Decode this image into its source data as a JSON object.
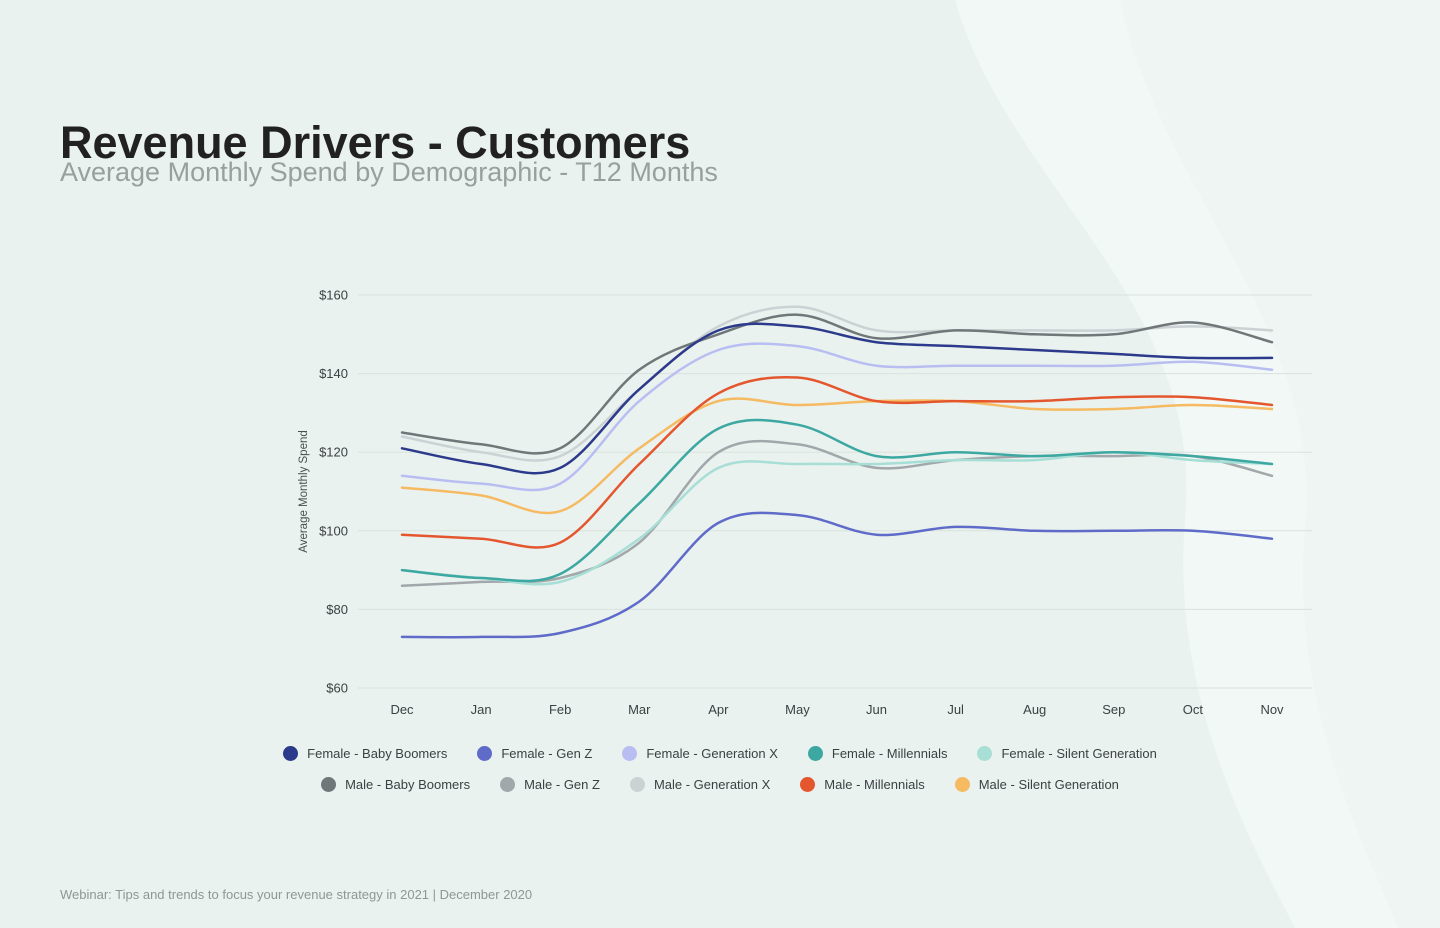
{
  "page": {
    "title": "Revenue Drivers - Customers",
    "subtitle": "Average Monthly Spend by Demographic - T12 Months",
    "footer": "Webinar: Tips and trends to focus your revenue strategy in 2021  |  December 2020",
    "background_color": "#eaf2ef"
  },
  "chart_data": {
    "type": "line",
    "title": "",
    "xlabel": "",
    "ylabel": "Average Monthly Spend",
    "ylim": [
      60,
      160
    ],
    "yticks": [
      60,
      80,
      100,
      120,
      140,
      160
    ],
    "ytick_labels": [
      "$60",
      "$80",
      "$100",
      "$120",
      "$140",
      "$160"
    ],
    "categories": [
      "Dec",
      "Jan",
      "Feb",
      "Mar",
      "Apr",
      "May",
      "Jun",
      "Jul",
      "Aug",
      "Sep",
      "Oct",
      "Nov"
    ],
    "grid": "horizontal",
    "legend_position": "bottom",
    "series": [
      {
        "name": "Female - Baby Boomers",
        "color": "#2c3a8c",
        "values": [
          121,
          117,
          116,
          136,
          151,
          152,
          148,
          147,
          146,
          145,
          144,
          144
        ]
      },
      {
        "name": "Female - Gen Z",
        "color": "#5f6bc9",
        "values": [
          73,
          73,
          74,
          82,
          102,
          104,
          99,
          101,
          100,
          100,
          100,
          98
        ]
      },
      {
        "name": "Female - Generation X",
        "color": "#b9bef2",
        "values": [
          114,
          112,
          112,
          133,
          146,
          147,
          142,
          142,
          142,
          142,
          143,
          141
        ]
      },
      {
        "name": "Female - Millennials",
        "color": "#3da8a1",
        "values": [
          90,
          88,
          89,
          107,
          126,
          127,
          119,
          120,
          119,
          120,
          119,
          117
        ]
      },
      {
        "name": "Female - Silent Generation",
        "color": "#a7ded6",
        "values": [
          90,
          88,
          87,
          98,
          116,
          117,
          117,
          118,
          118,
          120,
          118,
          117
        ]
      },
      {
        "name": "Male - Baby Boomers",
        "color": "#6f7779",
        "values": [
          125,
          122,
          121,
          141,
          150,
          155,
          149,
          151,
          150,
          150,
          153,
          148
        ]
      },
      {
        "name": "Male - Gen Z",
        "color": "#a1a7aa",
        "values": [
          86,
          87,
          88,
          97,
          120,
          122,
          116,
          118,
          119,
          119,
          119,
          114
        ]
      },
      {
        "name": "Male - Generation X",
        "color": "#ccd1d3",
        "values": [
          124,
          120,
          119,
          136,
          152,
          157,
          151,
          151,
          151,
          151,
          152,
          151
        ]
      },
      {
        "name": "Male - Millennials",
        "color": "#e4572e",
        "values": [
          99,
          98,
          97,
          117,
          135,
          139,
          133,
          133,
          133,
          134,
          134,
          132
        ]
      },
      {
        "name": "Male - Silent Generation",
        "color": "#f5ba62",
        "values": [
          111,
          109,
          105,
          121,
          133,
          132,
          133,
          133,
          131,
          131,
          132,
          131
        ]
      }
    ]
  },
  "legend": {
    "rows": [
      [
        0,
        1,
        2,
        3,
        4
      ],
      [
        5,
        6,
        7,
        8,
        9
      ]
    ]
  }
}
